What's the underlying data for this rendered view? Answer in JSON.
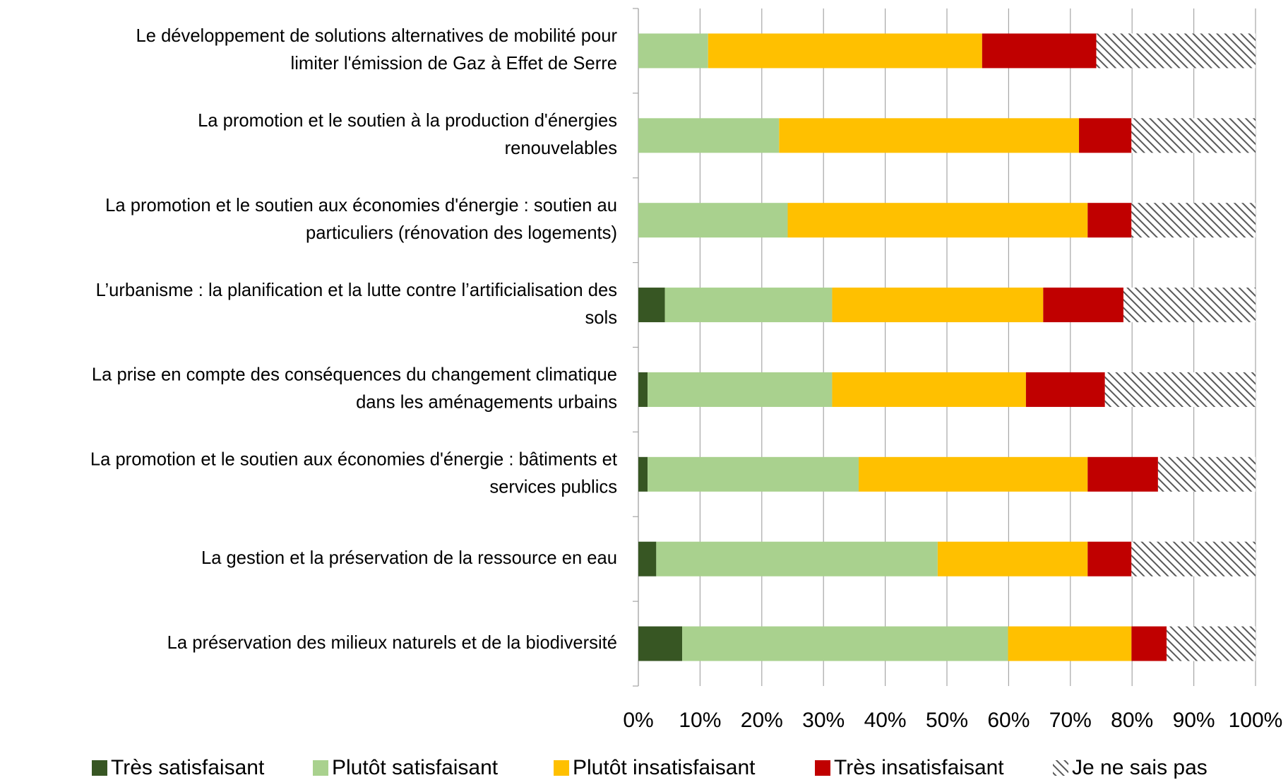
{
  "chart_data": {
    "type": "stacked_barh",
    "categories": [
      [
        "Le développement de solutions alternatives de mobilité pour",
        "limiter l'émission de Gaz à Effet de Serre"
      ],
      [
        "La promotion et le soutien à la production d'énergies",
        "renouvelables"
      ],
      [
        "La promotion et le soutien aux économies d'énergie : soutien au",
        "particuliers (rénovation des logements)"
      ],
      [
        "L’urbanisme : la planification et la lutte contre l’artificialisation des",
        "sols"
      ],
      [
        "La prise en compte des conséquences du changement climatique",
        "dans les aménagements urbains"
      ],
      [
        "La promotion et le soutien aux économies d'énergie : bâtiments et",
        "services publics"
      ],
      [
        "La gestion et la préservation de la ressource en eau"
      ],
      [
        "La préservation des milieux naturels et de la biodiversité"
      ]
    ],
    "series": [
      {
        "name": "Très satisfaisant",
        "color": "#375623",
        "values": [
          0,
          0,
          0,
          4.3,
          1.5,
          1.5,
          2.9,
          7.1
        ]
      },
      {
        "name": "Plutôt satisfaisant",
        "color": "#a9d18e",
        "values": [
          11.3,
          22.8,
          24.2,
          27.1,
          29.9,
          34.2,
          45.6,
          52.8
        ]
      },
      {
        "name": "Plutôt insatisfaisant",
        "color": "#ffc000",
        "values": [
          44.4,
          48.6,
          48.6,
          34.2,
          31.4,
          37.1,
          24.3,
          20.0
        ]
      },
      {
        "name": "Très insatisfaisant",
        "color": "#c00000",
        "values": [
          18.5,
          8.5,
          7.1,
          13.0,
          12.8,
          11.4,
          7.1,
          5.7
        ]
      },
      {
        "name": "Je ne sais pas",
        "color": "#595959",
        "hatch": true,
        "values": [
          25.8,
          20.1,
          20.1,
          21.4,
          24.4,
          15.8,
          20.1,
          14.4
        ]
      }
    ],
    "xlim": [
      0,
      100
    ],
    "xticks": [
      {
        "value": 0,
        "label": "0%"
      },
      {
        "value": 10,
        "label": "10%"
      },
      {
        "value": 20,
        "label": "20%"
      },
      {
        "value": 30,
        "label": "30%"
      },
      {
        "value": 40,
        "label": "40%"
      },
      {
        "value": 50,
        "label": "50%"
      },
      {
        "value": 60,
        "label": "60%"
      },
      {
        "value": 70,
        "label": "70%"
      },
      {
        "value": 80,
        "label": "80%"
      },
      {
        "value": 90,
        "label": "90%"
      },
      {
        "value": 100,
        "label": "100%"
      }
    ],
    "grid": true,
    "legend": "bottom"
  }
}
